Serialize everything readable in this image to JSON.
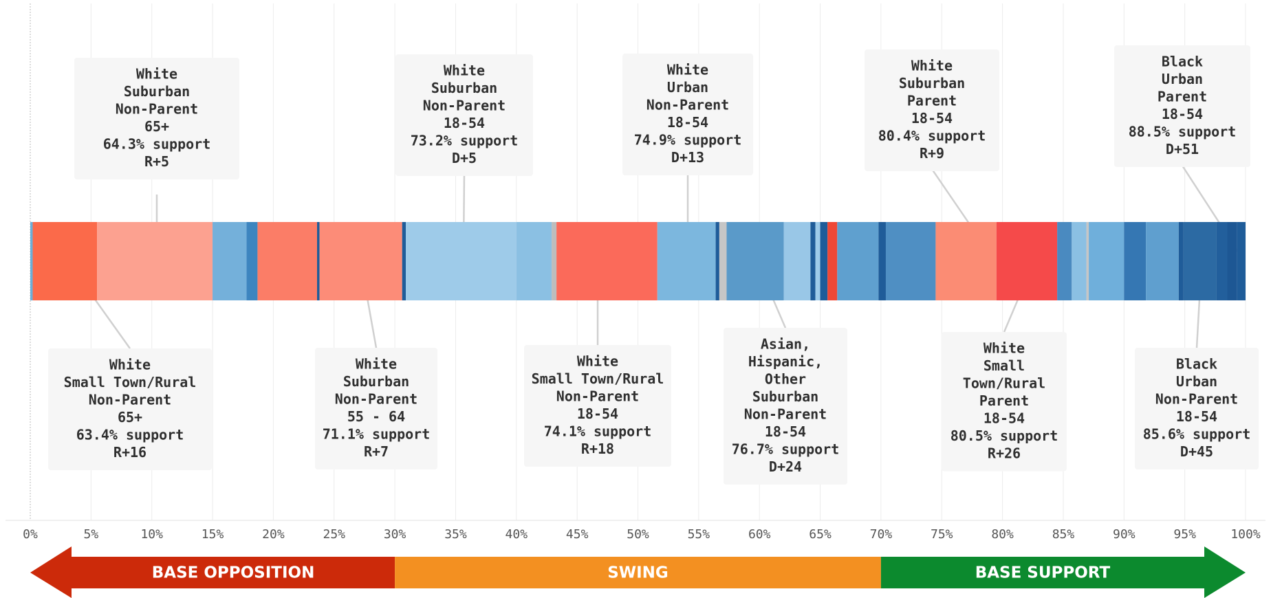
{
  "chart_data": {
    "type": "bar",
    "orientation": "horizontal",
    "stacked": true,
    "xlim": [
      0,
      100
    ],
    "grid": true,
    "x_ticks": [
      "0%",
      "5%",
      "10%",
      "15%",
      "20%",
      "25%",
      "30%",
      "35%",
      "40%",
      "45%",
      "50%",
      "55%",
      "60%",
      "65%",
      "70%",
      "75%",
      "80%",
      "85%",
      "90%",
      "95%",
      "100%"
    ],
    "segments": [
      {
        "start": 0.0,
        "end": 0.2,
        "color": "#6baed6"
      },
      {
        "start": 0.2,
        "end": 5.5,
        "color": "#fb6a4a"
      },
      {
        "start": 5.5,
        "end": 15.0,
        "color": "#fca190"
      },
      {
        "start": 15.0,
        "end": 17.8,
        "color": "#74b0da"
      },
      {
        "start": 17.8,
        "end": 18.7,
        "color": "#3d85bf"
      },
      {
        "start": 18.7,
        "end": 23.6,
        "color": "#fb7d67"
      },
      {
        "start": 23.6,
        "end": 23.8,
        "color": "#1f5c99"
      },
      {
        "start": 23.8,
        "end": 30.6,
        "color": "#fc8c78"
      },
      {
        "start": 30.6,
        "end": 30.9,
        "color": "#1f5c99"
      },
      {
        "start": 30.9,
        "end": 40.0,
        "color": "#9ecbe9"
      },
      {
        "start": 40.0,
        "end": 42.9,
        "color": "#8bc0e3"
      },
      {
        "start": 42.9,
        "end": 43.3,
        "color": "#bdbdbd"
      },
      {
        "start": 43.3,
        "end": 51.6,
        "color": "#fb6a5a"
      },
      {
        "start": 51.6,
        "end": 56.4,
        "color": "#7cb7de"
      },
      {
        "start": 56.4,
        "end": 56.7,
        "color": "#1f5c99"
      },
      {
        "start": 56.7,
        "end": 57.3,
        "color": "#c6c6c6"
      },
      {
        "start": 57.3,
        "end": 62.0,
        "color": "#5a9ac9"
      },
      {
        "start": 62.0,
        "end": 64.2,
        "color": "#99c7e7"
      },
      {
        "start": 64.2,
        "end": 64.6,
        "color": "#1f5c99"
      },
      {
        "start": 64.6,
        "end": 65.0,
        "color": "#9ecbe9"
      },
      {
        "start": 65.0,
        "end": 65.6,
        "color": "#1f5c99"
      },
      {
        "start": 65.6,
        "end": 66.4,
        "color": "#ef4836"
      },
      {
        "start": 66.4,
        "end": 69.8,
        "color": "#5fa0cf"
      },
      {
        "start": 69.8,
        "end": 70.4,
        "color": "#1f5c99"
      },
      {
        "start": 70.4,
        "end": 74.5,
        "color": "#4f8fc3"
      },
      {
        "start": 74.5,
        "end": 79.5,
        "color": "#fb8c74"
      },
      {
        "start": 79.5,
        "end": 84.5,
        "color": "#f54a4a"
      },
      {
        "start": 84.5,
        "end": 85.7,
        "color": "#4a8ac0"
      },
      {
        "start": 85.7,
        "end": 86.9,
        "color": "#8bc0e3"
      },
      {
        "start": 86.9,
        "end": 87.1,
        "color": "#c6c6c6"
      },
      {
        "start": 87.1,
        "end": 90.0,
        "color": "#6fafdb"
      },
      {
        "start": 90.0,
        "end": 91.8,
        "color": "#3577b3"
      },
      {
        "start": 91.8,
        "end": 94.5,
        "color": "#5f9fcf"
      },
      {
        "start": 94.5,
        "end": 94.9,
        "color": "#1f5c99"
      },
      {
        "start": 94.9,
        "end": 97.6,
        "color": "#2c6aa3"
      },
      {
        "start": 97.6,
        "end": 98.5,
        "color": "#225f9c"
      },
      {
        "start": 98.5,
        "end": 99.3,
        "color": "#1d5794"
      },
      {
        "start": 99.3,
        "end": 100.0,
        "color": "#1f5c99"
      }
    ],
    "annotations": [
      {
        "lines": [
          "White",
          "Suburban",
          "Non-Parent",
          "65+",
          "64.3% support",
          "R+5"
        ],
        "x": 10.3,
        "position": "above"
      },
      {
        "lines": [
          "White",
          "Suburban",
          "Non-Parent",
          "18-54",
          "73.2% support",
          "D+5"
        ],
        "x": 35.6,
        "position": "above"
      },
      {
        "lines": [
          "White",
          "Urban",
          "Non-Parent",
          "18-54",
          "74.9% support",
          "D+13"
        ],
        "x": 54.1,
        "position": "above"
      },
      {
        "lines": [
          "White",
          "Suburban",
          "Parent",
          "18-54",
          "80.4% support",
          "R+9"
        ],
        "x": 78.9,
        "position": "above"
      },
      {
        "lines": [
          "Black",
          "Urban",
          "Parent",
          "18-54",
          "88.5% support",
          "D+51"
        ],
        "x": 99.2,
        "position": "above"
      },
      {
        "lines": [
          "White",
          "Small Town/Rural",
          "Non-Parent",
          "65+",
          "63.4% support",
          "R+16"
        ],
        "x": 3.6,
        "position": "below"
      },
      {
        "lines": [
          "White",
          "Suburban",
          "Non-Parent",
          "55 - 64",
          "71.1% support",
          "R+7"
        ],
        "x": 27.4,
        "position": "below"
      },
      {
        "lines": [
          "White",
          "Small Town/Rural",
          "Non-Parent",
          "18-54",
          "74.1% support",
          "R+18"
        ],
        "x": 46.7,
        "position": "below"
      },
      {
        "lines": [
          "Asian,",
          "Hispanic,",
          "Other",
          "Suburban",
          "Non-Parent",
          "18-54",
          "76.7% support",
          "D+24"
        ],
        "x": 60.2,
        "position": "below"
      },
      {
        "lines": [
          "White",
          "Small",
          "Town/Rural",
          "Parent",
          "18-54",
          "80.5% support",
          "R+26"
        ],
        "x": 82.1,
        "position": "below"
      },
      {
        "lines": [
          "Black",
          "Urban",
          "Non-Parent",
          "18-54",
          "85.6% support",
          "D+45"
        ],
        "x": 96.3,
        "position": "below"
      }
    ],
    "bands": [
      {
        "label": "BASE OPPOSITION",
        "start": 0,
        "end": 30,
        "color": "#cc2a0a",
        "arrow": "left"
      },
      {
        "label": "SWING",
        "start": 30,
        "end": 70,
        "color": "#f39021",
        "arrow": "none"
      },
      {
        "label": "BASE SUPPORT",
        "start": 70,
        "end": 100,
        "color": "#0c8a2e",
        "arrow": "right"
      }
    ]
  }
}
